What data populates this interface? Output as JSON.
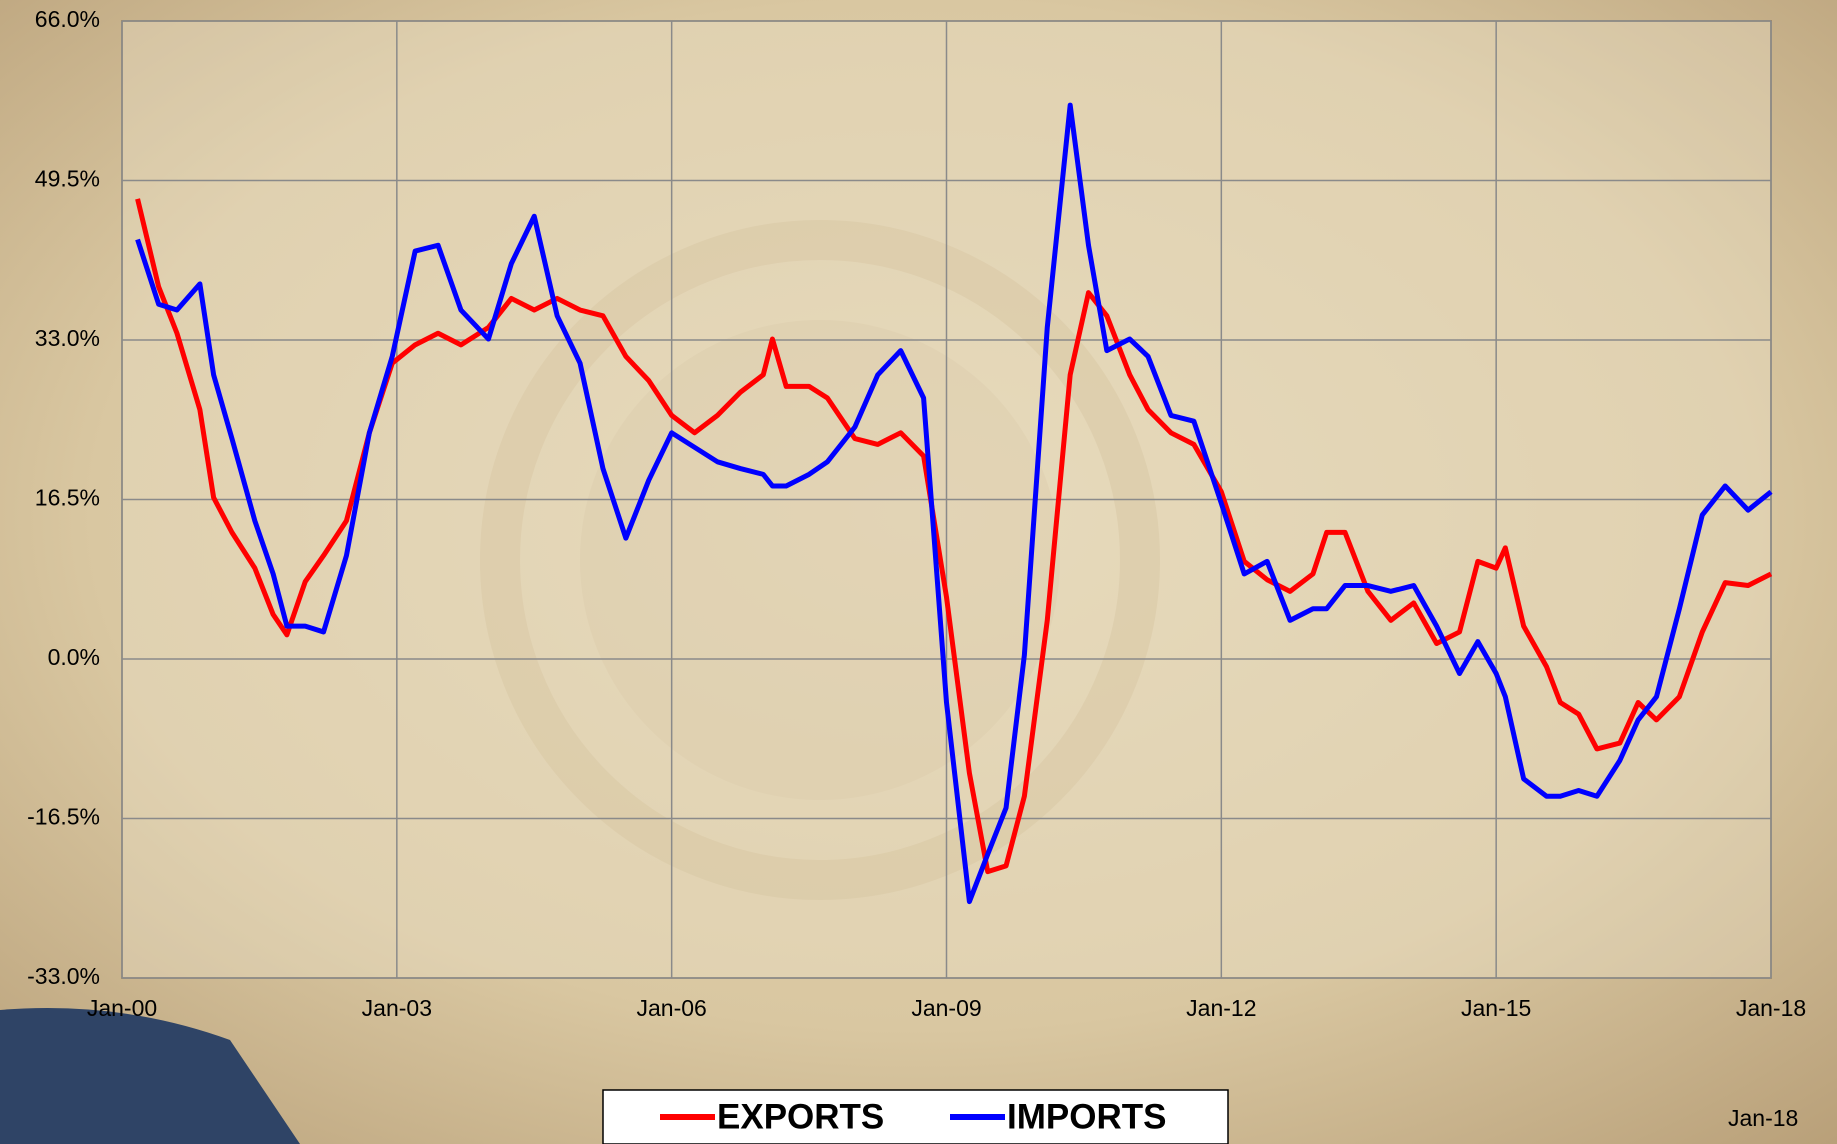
{
  "chart_data": {
    "type": "line",
    "x": [
      2000.17,
      2000.4,
      2000.6,
      2000.85,
      2001.0,
      2001.2,
      2001.45,
      2001.65,
      2001.8,
      2002.0,
      2002.2,
      2002.45,
      2002.7,
      2002.95,
      2003.2,
      2003.45,
      2003.7,
      2004.0,
      2004.25,
      2004.5,
      2004.75,
      2005.0,
      2005.25,
      2005.5,
      2005.75,
      2006.0,
      2006.25,
      2006.5,
      2006.75,
      2007.0,
      2007.1,
      2007.25,
      2007.5,
      2007.7,
      2008.0,
      2008.25,
      2008.5,
      2008.75,
      2009.0,
      2009.25,
      2009.45,
      2009.65,
      2009.85,
      2010.1,
      2010.35,
      2010.55,
      2010.75,
      2011.0,
      2011.2,
      2011.45,
      2011.7,
      2012.0,
      2012.25,
      2012.5,
      2012.75,
      2013.0,
      2013.15,
      2013.35,
      2013.6,
      2013.85,
      2014.1,
      2014.35,
      2014.6,
      2014.8,
      2015.0,
      2015.1,
      2015.3,
      2015.55,
      2015.7,
      2015.9,
      2016.1,
      2016.35,
      2016.55,
      2016.75,
      2017.0,
      2017.25,
      2017.5,
      2017.75,
      2018.0
    ],
    "series": [
      {
        "name": "EXPORTS",
        "color": "#ff0000",
        "values": [
          47.6,
          38.5,
          33.7,
          25.8,
          16.7,
          13.1,
          9.4,
          4.6,
          2.5,
          8.0,
          10.7,
          14.3,
          23.4,
          30.6,
          32.5,
          33.7,
          32.5,
          34.3,
          37.3,
          36.1,
          37.3,
          36.1,
          35.5,
          31.3,
          28.8,
          25.2,
          23.4,
          25.2,
          27.6,
          29.4,
          33.1,
          28.2,
          28.2,
          27.0,
          22.8,
          22.2,
          23.4,
          21.0,
          6.4,
          -11.8,
          -22.0,
          -21.4,
          -14.2,
          4.0,
          29.4,
          37.9,
          35.5,
          29.4,
          25.8,
          23.4,
          22.2,
          17.3,
          10.1,
          8.2,
          7.0,
          8.8,
          13.1,
          13.1,
          7.0,
          4.0,
          5.8,
          1.6,
          2.8,
          10.1,
          9.4,
          11.5,
          3.4,
          -0.8,
          -4.5,
          -5.7,
          -9.3,
          -8.7,
          -4.5,
          -6.3,
          -3.9,
          2.8,
          7.9,
          7.6,
          8.8
        ]
      },
      {
        "name": "IMPORTS",
        "color": "#0000ff",
        "values": [
          43.4,
          36.7,
          36.1,
          38.8,
          29.4,
          22.8,
          14.3,
          8.8,
          3.4,
          3.4,
          2.8,
          10.7,
          23.4,
          31.3,
          42.2,
          42.8,
          36.1,
          33.1,
          40.9,
          45.8,
          35.5,
          30.6,
          19.7,
          12.5,
          18.5,
          23.4,
          21.9,
          20.4,
          19.7,
          19.1,
          17.9,
          17.9,
          19.1,
          20.4,
          24.0,
          29.4,
          31.9,
          27.0,
          -4.5,
          -25.1,
          -20.2,
          -15.4,
          0.4,
          34.3,
          57.3,
          42.8,
          31.9,
          33.1,
          31.3,
          25.2,
          24.6,
          16.1,
          8.8,
          10.1,
          4.0,
          5.2,
          5.2,
          7.6,
          7.6,
          7.0,
          7.6,
          3.4,
          -1.5,
          1.8,
          -1.5,
          -3.9,
          -12.4,
          -14.2,
          -14.2,
          -13.6,
          -14.2,
          -10.5,
          -6.3,
          -3.9,
          5.2,
          14.9,
          17.9,
          15.4,
          17.3
        ]
      }
    ],
    "xlim": [
      2000,
      2018
    ],
    "xticks": [
      {
        "value": 2000,
        "label": "Jan-00"
      },
      {
        "value": 2003,
        "label": "Jan-03"
      },
      {
        "value": 2006,
        "label": "Jan-06"
      },
      {
        "value": 2009,
        "label": "Jan-09"
      },
      {
        "value": 2012,
        "label": "Jan-12"
      },
      {
        "value": 2015,
        "label": "Jan-15"
      },
      {
        "value": 2018,
        "label": "Jan-18"
      }
    ],
    "ylim": [
      -33,
      66
    ],
    "yticks": [
      {
        "value": -33,
        "label": "-33.0%"
      },
      {
        "value": -16.5,
        "label": "-16.5%"
      },
      {
        "value": 0,
        "label": "0.0%"
      },
      {
        "value": 16.5,
        "label": "16.5%"
      },
      {
        "value": 33,
        "label": "33.0%"
      },
      {
        "value": 49.5,
        "label": "49.5%"
      },
      {
        "value": 66,
        "label": "66.0%"
      }
    ],
    "grid": true,
    "legend_position": "bottom",
    "annotation": "Jan-18"
  }
}
